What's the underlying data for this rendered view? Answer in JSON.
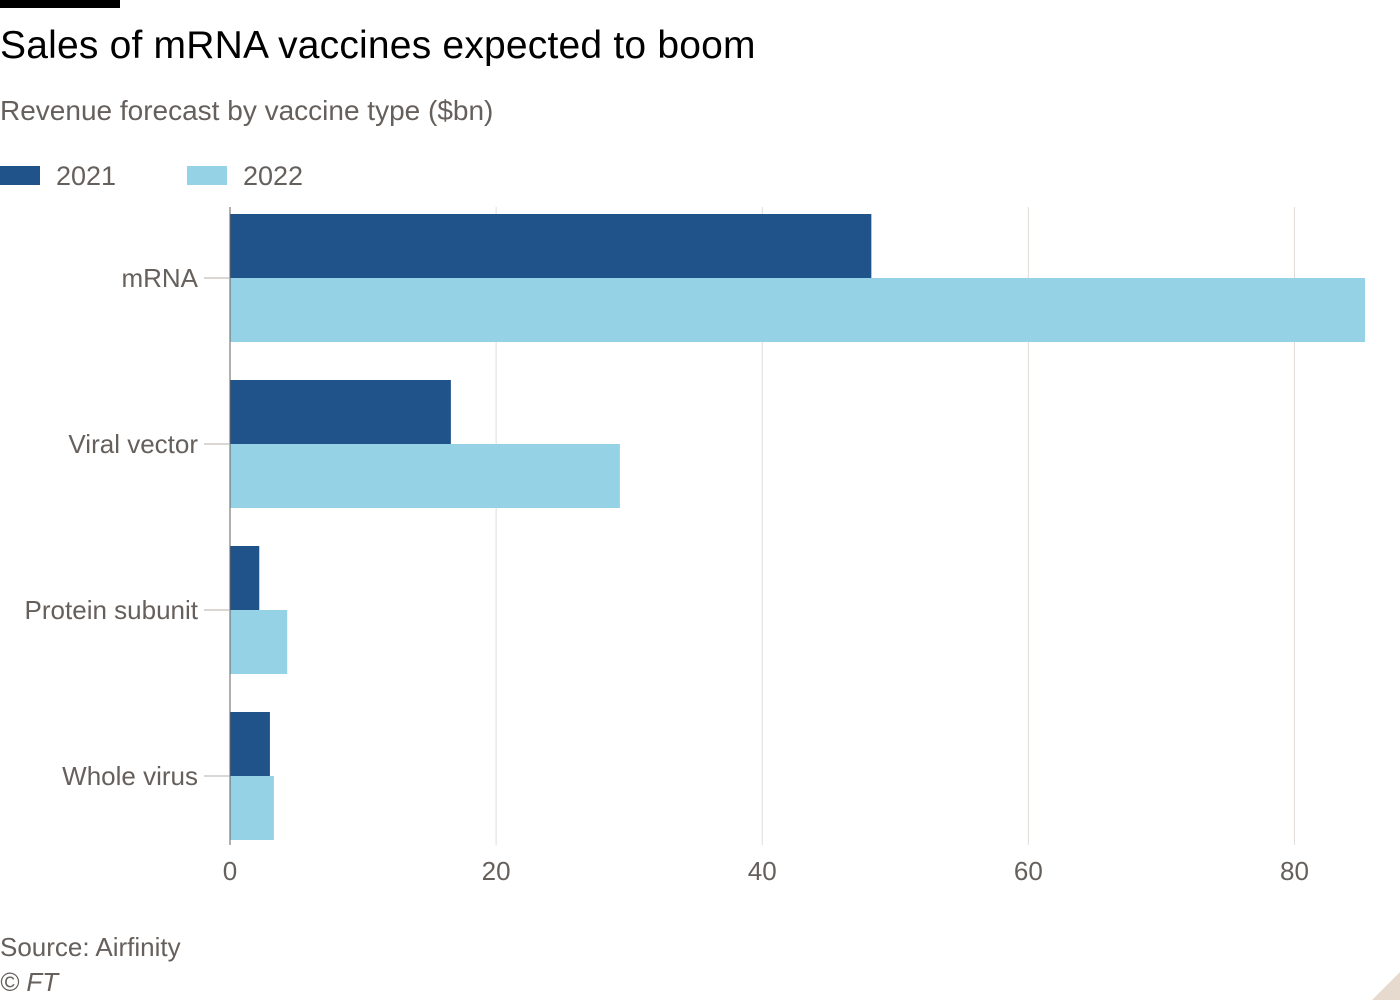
{
  "title": "Sales of mRNA vaccines expected to boom",
  "subtitle": "Revenue forecast by vaccine type ($bn)",
  "legend": [
    {
      "label": "2021",
      "color": "#1f538a"
    },
    {
      "label": "2022",
      "color": "#96d2e5"
    }
  ],
  "source": "Source: Airfinity",
  "credit": "© FT",
  "chart_data": {
    "type": "bar",
    "orientation": "horizontal",
    "categories": [
      "mRNA",
      "Viral vector",
      "Protein subunit",
      "Whole virus"
    ],
    "series": [
      {
        "name": "2021",
        "color": "#1f538a",
        "values": [
          48.2,
          16.6,
          2.2,
          3.0
        ]
      },
      {
        "name": "2022",
        "color": "#96d2e5",
        "values": [
          85.3,
          29.3,
          4.3,
          3.3
        ]
      }
    ],
    "x_ticks": [
      0,
      20,
      40,
      60,
      80
    ],
    "xlim": [
      0,
      85.3
    ],
    "grid": true,
    "legend_position": "top-left"
  }
}
